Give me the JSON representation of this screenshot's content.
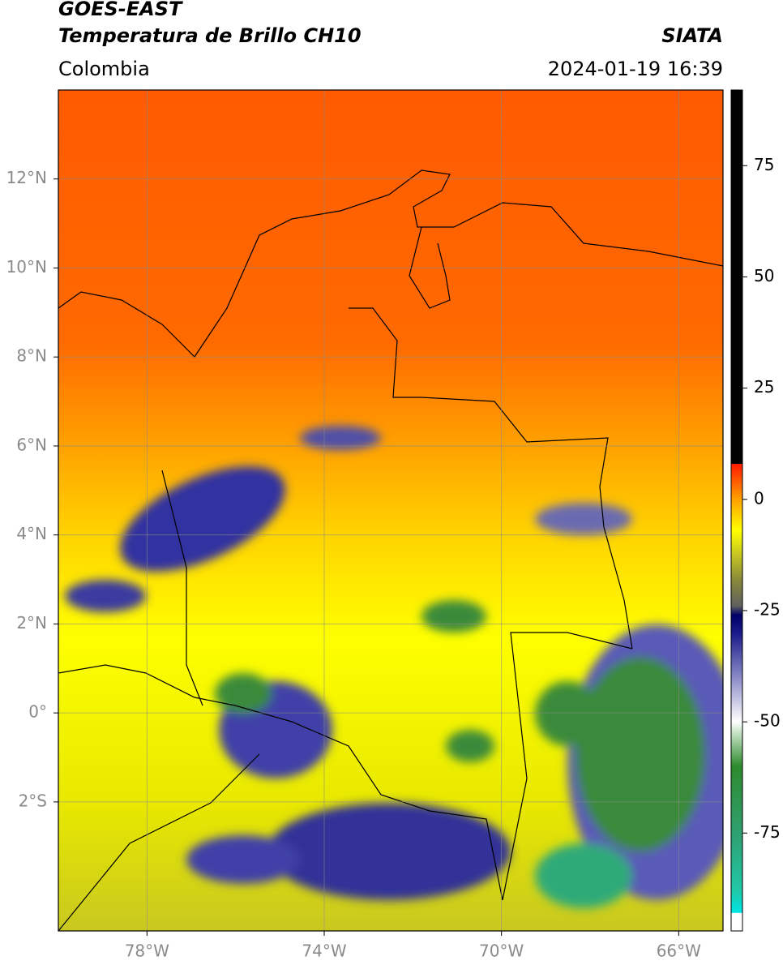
{
  "header": {
    "title": "GOES-EAST",
    "subtitle": "Temperatura de Brillo CH10",
    "source": "SIATA",
    "region": "Colombia",
    "timestamp": "2024-01-19 16:39"
  },
  "map": {
    "xlim": [
      -80,
      -65
    ],
    "ylim": [
      -4.9,
      14
    ],
    "xticks": [
      {
        "value": -78,
        "label": "78°W"
      },
      {
        "value": -74,
        "label": "74°W"
      },
      {
        "value": -70,
        "label": "70°W"
      },
      {
        "value": -66,
        "label": "66°W"
      }
    ],
    "yticks": [
      {
        "value": 12,
        "label": "12°N"
      },
      {
        "value": 10,
        "label": "10°N"
      },
      {
        "value": 8,
        "label": "8°N"
      },
      {
        "value": 6,
        "label": "6°N"
      },
      {
        "value": 4,
        "label": "4°N"
      },
      {
        "value": 2,
        "label": "2°N"
      },
      {
        "value": 0,
        "label": "0°"
      },
      {
        "value": -2,
        "label": "2°S"
      }
    ],
    "grid": true
  },
  "colorbar": {
    "lim": [
      -97,
      92
    ],
    "ticks": [
      75,
      50,
      25,
      0,
      -25,
      -50,
      -75
    ],
    "colormap": [
      {
        "value": -97,
        "color": "#ffffff"
      },
      {
        "value": -93,
        "color": "#ffffff"
      },
      {
        "value": -92.9,
        "color": "#00e5e5"
      },
      {
        "value": -88,
        "color": "#20c8a8"
      },
      {
        "value": -75,
        "color": "#2fa070"
      },
      {
        "value": -60,
        "color": "#2e8b2e"
      },
      {
        "value": -52,
        "color": "#cfe8cf"
      },
      {
        "value": -50,
        "color": "#ffffff"
      },
      {
        "value": -40,
        "color": "#8a8ac8"
      },
      {
        "value": -30,
        "color": "#1a1a8a"
      },
      {
        "value": -26,
        "color": "#000066"
      },
      {
        "value": -24,
        "color": "#606060"
      },
      {
        "value": -18,
        "color": "#8a8a3a"
      },
      {
        "value": -12,
        "color": "#caca20"
      },
      {
        "value": -7,
        "color": "#ffff00"
      },
      {
        "value": 0,
        "color": "#ffa000"
      },
      {
        "value": 8,
        "color": "#ff1a00"
      },
      {
        "value": 8.01,
        "color": "#000000"
      },
      {
        "value": 92,
        "color": "#000000"
      }
    ]
  }
}
